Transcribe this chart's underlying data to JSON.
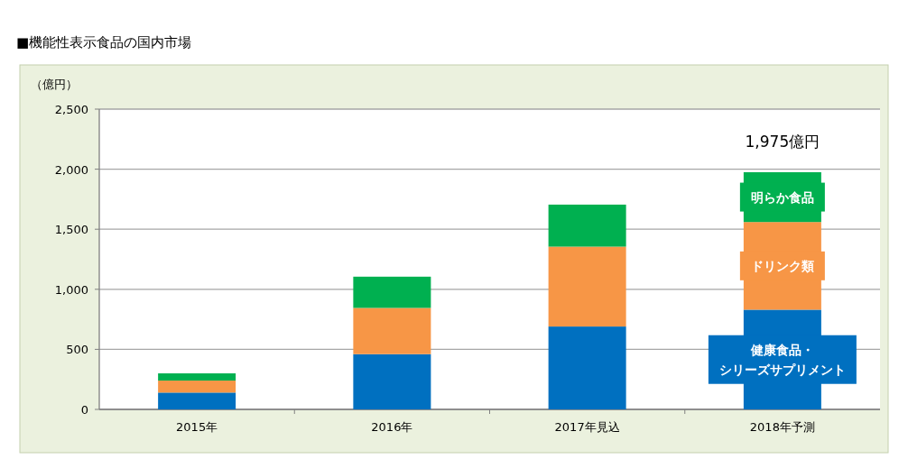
{
  "chart_data": {
    "type": "bar",
    "stacked": true,
    "title": "■機能性表示食品の国内市場",
    "ylabel": "（億円）",
    "categories": [
      "2015年",
      "2016年",
      "2017年見込",
      "2018年予測"
    ],
    "series": [
      {
        "name": "健康食品・シリーズサプリメント",
        "color": "#0070c0",
        "values": [
          140,
          460,
          690,
          830
        ]
      },
      {
        "name": "ドリンク類",
        "color": "#f79646",
        "values": [
          100,
          385,
          665,
          730
        ]
      },
      {
        "name": "明らか食品",
        "color": "#00b050",
        "values": [
          60,
          260,
          350,
          415
        ]
      }
    ],
    "totals": [
      null,
      null,
      null,
      "1,975億円"
    ],
    "ylim": [
      0,
      2500
    ],
    "yticks": [
      0,
      500,
      {
        "value": 1000,
        "label": "1,000"
      },
      {
        "value": 1500,
        "label": "1,500"
      },
      {
        "value": 2000,
        "label": "2,000"
      },
      {
        "value": 2500,
        "label": "2,500"
      }
    ],
    "grid": "y"
  }
}
